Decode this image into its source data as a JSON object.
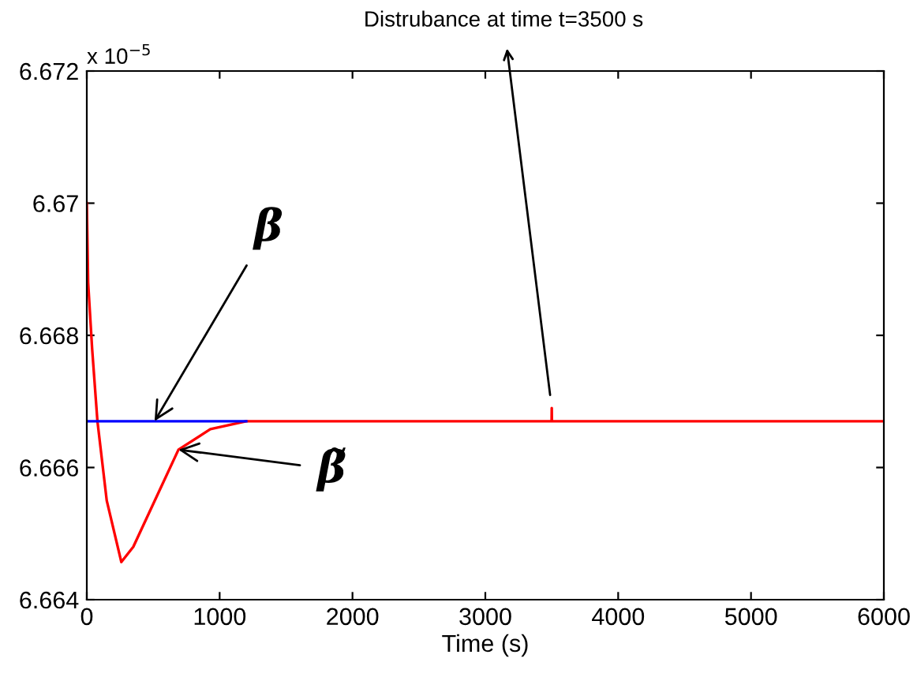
{
  "chart_data": {
    "type": "line",
    "xlabel": "Time (s)",
    "xlim": [
      0,
      6000
    ],
    "xticks": [
      0,
      1000,
      2000,
      3000,
      4000,
      5000,
      6000
    ],
    "ylim": [
      6.664,
      6.672
    ],
    "yticks": [
      6.664,
      6.666,
      6.668,
      6.67,
      6.672
    ],
    "grid": false,
    "legend": false,
    "line_style": "solid",
    "marker": "none",
    "series": [
      {
        "color": "#ff0000",
        "x": [
          0,
          10,
          40,
          80,
          150,
          260,
          350,
          535,
          690,
          930,
          1200,
          3499,
          3500,
          3501,
          6000
        ],
        "values": [
          6.67,
          6.6688,
          6.6678,
          6.6667,
          6.6655,
          6.66457,
          6.6648,
          6.6656,
          6.66627,
          6.66658,
          6.6667,
          6.6667,
          6.6669,
          6.6667,
          6.6667
        ]
      },
      {
        "color": "#0000ff",
        "x": [
          0,
          1200
        ],
        "values": [
          6.6667,
          6.6667
        ]
      }
    ],
    "annotations": [
      {
        "text": "x 10$^{−5}$"
      },
      {
        "text": "β",
        "x": 510,
        "y": 6.6667
      },
      {
        "text": "β̃",
        "x": 690,
        "y": 6.66627
      },
      {
        "text": "Distrubance at time t=3500 s",
        "x": 3500,
        "y": 6.6669
      }
    ]
  }
}
